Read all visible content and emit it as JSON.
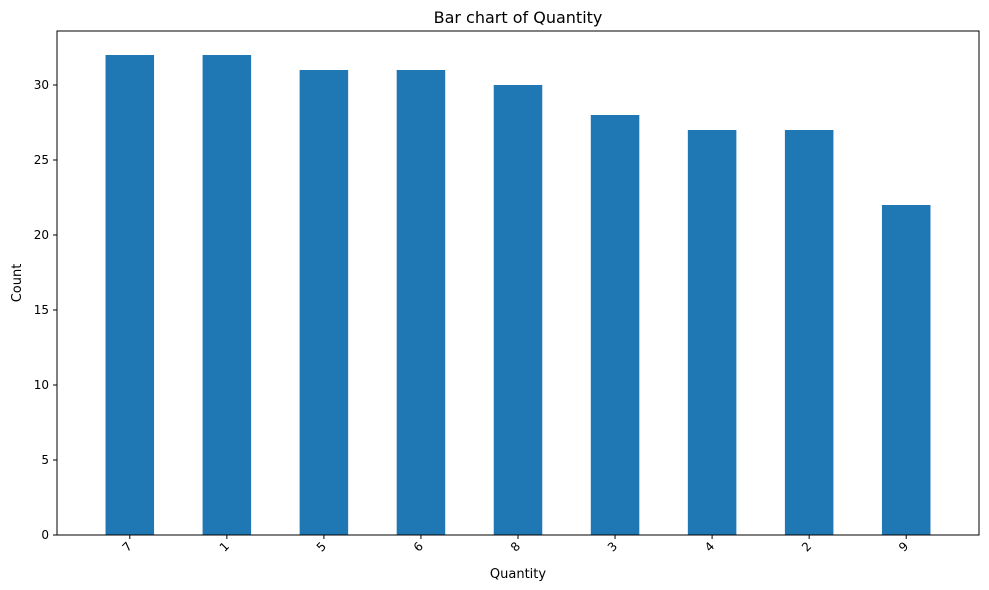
{
  "chart_data": {
    "type": "bar",
    "title": "Bar chart of Quantity",
    "xlabel": "Quantity",
    "ylabel": "Count",
    "categories": [
      "7",
      "1",
      "5",
      "6",
      "8",
      "3",
      "4",
      "2",
      "9"
    ],
    "values": [
      32,
      32,
      31,
      31,
      30,
      28,
      27,
      27,
      22
    ],
    "ylim": [
      0,
      33.6
    ],
    "yticks": [
      0,
      5,
      10,
      15,
      20,
      25,
      30
    ],
    "bar_color": "#1f77b4",
    "grid": false,
    "legend": "none"
  }
}
